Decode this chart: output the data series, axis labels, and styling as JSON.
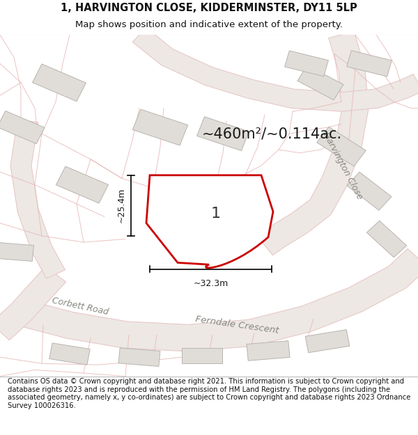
{
  "title_line1": "1, HARVINGTON CLOSE, KIDDERMINSTER, DY11 5LP",
  "title_line2": "Map shows position and indicative extent of the property.",
  "footer_text": "Contains OS data © Crown copyright and database right 2021. This information is subject to Crown copyright and database rights 2023 and is reproduced with the permission of HM Land Registry. The polygons (including the associated geometry, namely x, y co-ordinates) are subject to Crown copyright and database rights 2023 Ordnance Survey 100026316.",
  "area_label": "~460m²/~0.114ac.",
  "plot_number": "1",
  "dim_width": "~32.3m",
  "dim_height": "~25.4m",
  "map_bg": "#f7f6f4",
  "plot_fill": "#ffffff",
  "plot_edge": "#cc0000",
  "building_fill": "#e0ddd8",
  "building_edge": "#b8b4ae",
  "road_outline": "#e8c8c8",
  "road_fill": "#ede8e4",
  "faint_line": "#e8b8b8",
  "street_label_harvington": "Harvington Close",
  "street_label_corbett": "Corbett Road",
  "street_label_ferndale": "Ferndale Crescent",
  "title_fontsize": 10.5,
  "subtitle_fontsize": 9.5,
  "footer_fontsize": 7.2,
  "area_fontsize": 15,
  "dim_fontsize": 9,
  "label_fontsize": 9,
  "plot_num_fontsize": 16
}
